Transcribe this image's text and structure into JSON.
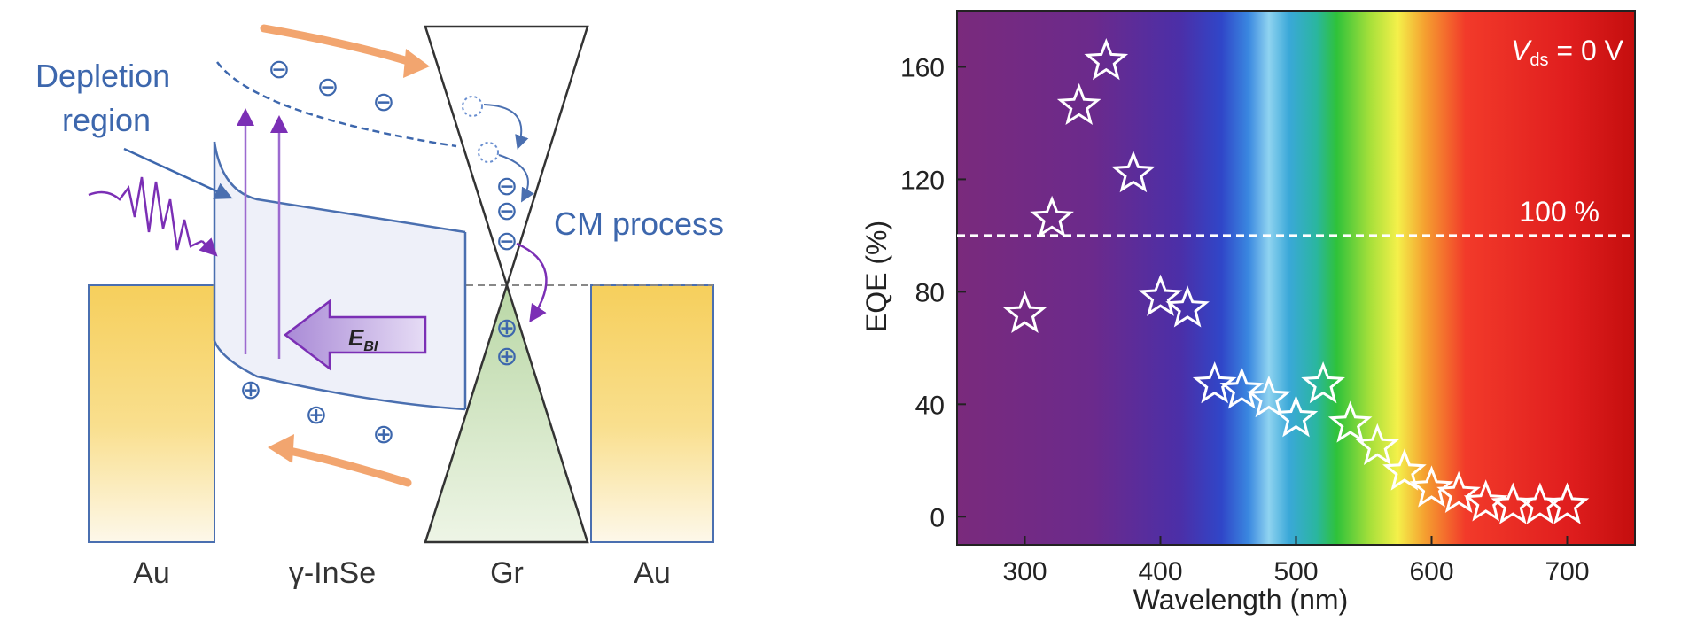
{
  "colors": {
    "band_line": "#4a6fb0",
    "text_blue": "#3d67ad",
    "purple": "#7b2fb5",
    "orange": "#f2a56f",
    "gold_top": "#f6cf5c",
    "gold_bottom": "#fdf6e0",
    "cone_green": "#cfe5c0",
    "axis_text": "#222222"
  },
  "band_diagram": {
    "depletion_label_line1": "Depletion",
    "depletion_label_line2": "region",
    "cm_label": "CM process",
    "field_label_main": "E",
    "field_label_sub": "BI",
    "electron_symbol": "⊖",
    "hole_symbol": "⊕",
    "bottom_labels": [
      "Au",
      "γ-InSe",
      "Gr",
      "Au"
    ]
  },
  "chart_data": {
    "type": "scatter",
    "xlabel": "Wavelength (nm)",
    "ylabel": "EQE (%)",
    "xlim": [
      250,
      750
    ],
    "ylim": [
      -10,
      180
    ],
    "x_ticks": [
      300,
      400,
      500,
      600,
      700
    ],
    "y_ticks": [
      0,
      40,
      80,
      120,
      160
    ],
    "annotation_main": "V",
    "annotation_sub": "ds",
    "annotation_rest": " = 0 V",
    "reference_line": {
      "y": 100,
      "label": "100 %"
    },
    "background": "visible spectrum gradient",
    "marker": "star",
    "points": [
      {
        "x": 300,
        "y": 72
      },
      {
        "x": 320,
        "y": 106
      },
      {
        "x": 340,
        "y": 146
      },
      {
        "x": 360,
        "y": 162
      },
      {
        "x": 380,
        "y": 122
      },
      {
        "x": 400,
        "y": 78
      },
      {
        "x": 420,
        "y": 74
      },
      {
        "x": 440,
        "y": 47
      },
      {
        "x": 460,
        "y": 45
      },
      {
        "x": 480,
        "y": 42
      },
      {
        "x": 500,
        "y": 35
      },
      {
        "x": 520,
        "y": 47
      },
      {
        "x": 540,
        "y": 33
      },
      {
        "x": 560,
        "y": 25
      },
      {
        "x": 580,
        "y": 16
      },
      {
        "x": 600,
        "y": 10
      },
      {
        "x": 620,
        "y": 8
      },
      {
        "x": 640,
        "y": 5
      },
      {
        "x": 660,
        "y": 4
      },
      {
        "x": 680,
        "y": 4
      },
      {
        "x": 700,
        "y": 4
      }
    ]
  }
}
